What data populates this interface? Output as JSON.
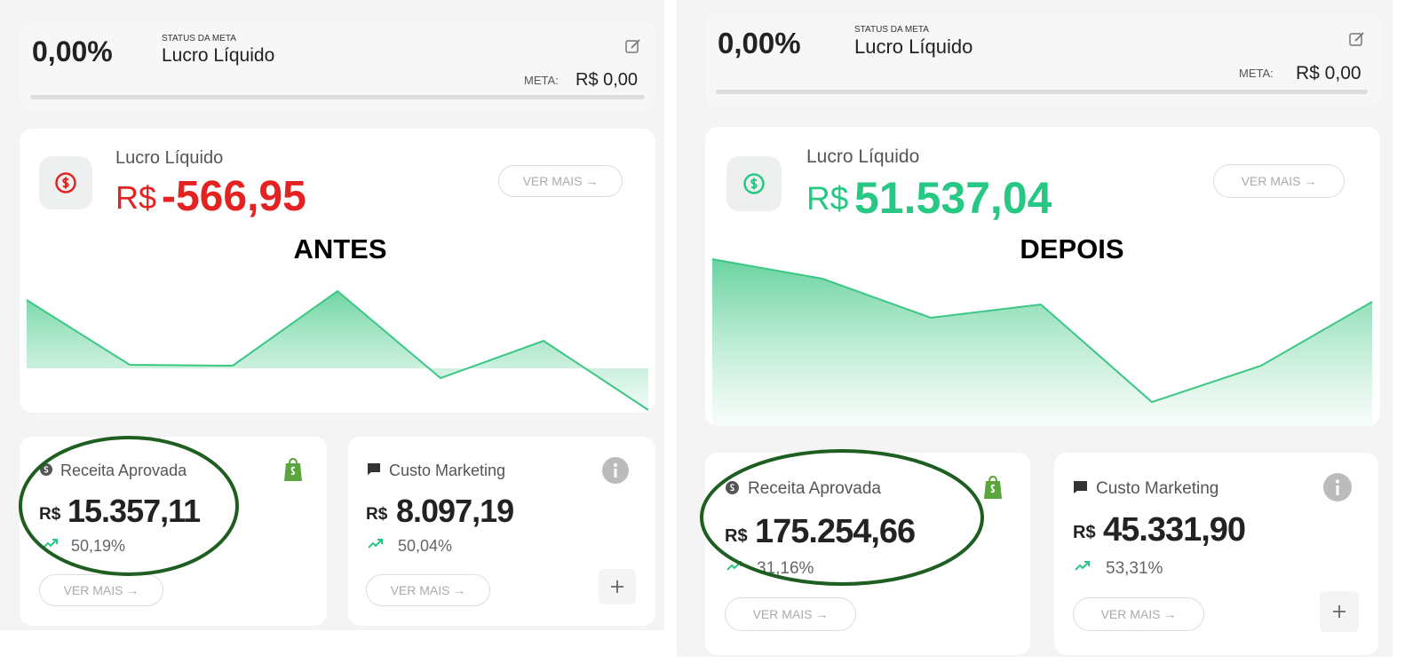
{
  "panels": [
    {
      "status_value": "0,00%",
      "status_label": "STATUS DA META",
      "status_title": "Lucro Líquido",
      "meta_label": "META:",
      "meta_value": "R$ 0,00",
      "main": {
        "title": "Lucro Líquido",
        "currency": "R$",
        "value": "-566,95",
        "button": "VER MAIS →"
      },
      "caption": "ANTES",
      "metrics": [
        {
          "title": "Receita Aprovada",
          "currency": "R$",
          "value": "15.357,11",
          "change": "50,19%",
          "button": "VER MAIS →"
        },
        {
          "title": "Custo Marketing",
          "currency": "R$",
          "value": "8.097,19",
          "change": "50,04%",
          "button": "VER MAIS →"
        }
      ]
    },
    {
      "status_value": "0,00%",
      "status_label": "STATUS DA META",
      "status_title": "Lucro Líquido",
      "meta_label": "META:",
      "meta_value": "R$ 0,00",
      "main": {
        "title": "Lucro Líquido",
        "currency": "R$",
        "value": "51.537,04",
        "button": "VER MAIS →"
      },
      "caption": "DEPOIS",
      "metrics": [
        {
          "title": "Receita Aprovada",
          "currency": "R$",
          "value": "175.254,66",
          "change": "31,16%",
          "button": "VER MAIS →"
        },
        {
          "title": "Custo Marketing",
          "currency": "R$",
          "value": "45.331,90",
          "change": "53,31%",
          "button": "VER MAIS →"
        }
      ]
    }
  ]
}
